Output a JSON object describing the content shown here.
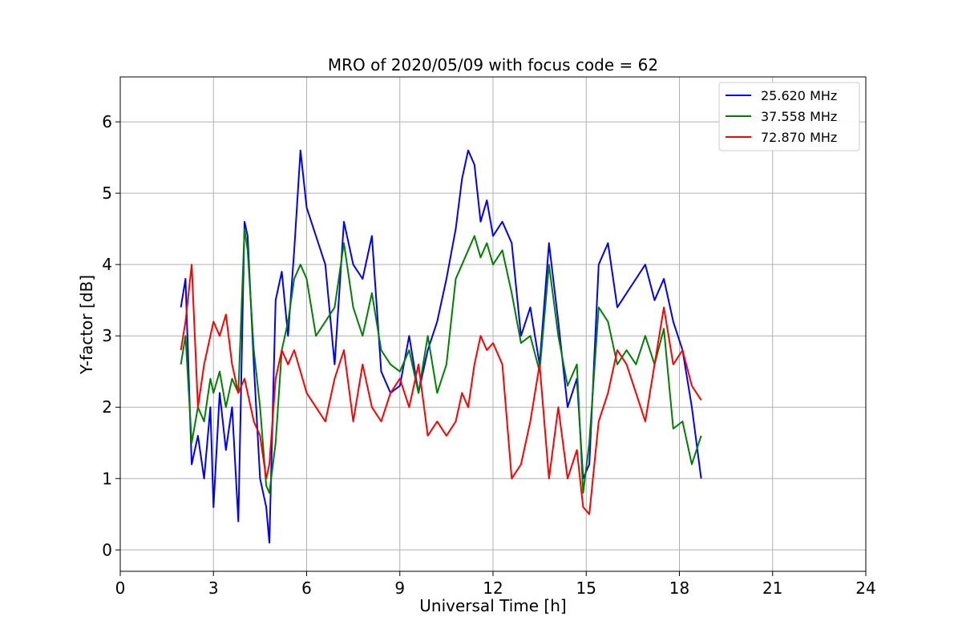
{
  "chart_data": {
    "type": "line",
    "title": "MRO of 2020/05/09 with focus code = 62",
    "xlabel": "Universal Time [h]",
    "ylabel": "Y-factor [dB]",
    "xlim": [
      0,
      24
    ],
    "ylim": [
      -0.3,
      6.63
    ],
    "xticks": [
      0,
      3,
      6,
      9,
      12,
      15,
      18,
      21,
      24
    ],
    "yticks": [
      0,
      1,
      2,
      3,
      4,
      5,
      6
    ],
    "grid": true,
    "legend_position": "top-right",
    "series": [
      {
        "name": "25.620 MHz",
        "color": "#0000ff",
        "x": [
          1.95,
          2.1,
          2.3,
          2.5,
          2.7,
          2.9,
          3.0,
          3.2,
          3.4,
          3.6,
          3.8,
          4.0,
          4.1,
          4.3,
          4.5,
          4.7,
          4.8,
          5.0,
          5.2,
          5.4,
          5.6,
          5.8,
          6.0,
          6.3,
          6.6,
          6.9,
          7.2,
          7.5,
          7.8,
          8.1,
          8.4,
          8.7,
          9.0,
          9.3,
          9.6,
          9.9,
          10.2,
          10.5,
          10.8,
          11.0,
          11.2,
          11.4,
          11.6,
          11.8,
          12.0,
          12.3,
          12.6,
          12.9,
          13.2,
          13.5,
          13.8,
          14.1,
          14.4,
          14.7,
          14.9,
          15.1,
          15.4,
          15.7,
          16.0,
          16.3,
          16.6,
          16.9,
          17.2,
          17.5,
          17.8,
          18.1,
          18.4,
          18.7
        ],
        "values": [
          3.4,
          3.8,
          1.2,
          1.6,
          1.0,
          2.0,
          0.6,
          2.2,
          1.4,
          2.0,
          0.4,
          4.6,
          4.4,
          2.6,
          1.0,
          0.6,
          0.1,
          3.5,
          3.9,
          3.0,
          4.2,
          5.6,
          4.8,
          4.4,
          4.0,
          2.6,
          4.6,
          4.0,
          3.8,
          4.4,
          2.5,
          2.2,
          2.3,
          3.0,
          2.2,
          2.8,
          3.2,
          3.8,
          4.5,
          5.2,
          5.6,
          5.4,
          4.6,
          4.9,
          4.4,
          4.6,
          4.3,
          3.0,
          3.4,
          2.6,
          4.3,
          3.2,
          2.0,
          2.4,
          1.0,
          1.2,
          4.0,
          4.3,
          3.4,
          3.6,
          3.8,
          4.0,
          3.5,
          3.8,
          3.2,
          2.8,
          2.0,
          1.0
        ],
        "line_width": 2
      },
      {
        "name": "37.558 MHz",
        "color": "#008000",
        "x": [
          1.95,
          2.1,
          2.3,
          2.5,
          2.7,
          2.9,
          3.0,
          3.2,
          3.4,
          3.6,
          3.8,
          4.0,
          4.1,
          4.3,
          4.5,
          4.7,
          4.8,
          5.0,
          5.2,
          5.4,
          5.6,
          5.8,
          6.0,
          6.3,
          6.6,
          6.9,
          7.2,
          7.5,
          7.8,
          8.1,
          8.4,
          8.7,
          9.0,
          9.3,
          9.6,
          9.9,
          10.2,
          10.5,
          10.8,
          11.0,
          11.2,
          11.4,
          11.6,
          11.8,
          12.0,
          12.3,
          12.6,
          12.9,
          13.2,
          13.5,
          13.8,
          14.1,
          14.4,
          14.7,
          14.9,
          15.1,
          15.4,
          15.7,
          16.0,
          16.3,
          16.6,
          16.9,
          17.2,
          17.5,
          17.8,
          18.1,
          18.4,
          18.7
        ],
        "values": [
          2.6,
          3.0,
          1.5,
          2.0,
          1.8,
          2.4,
          2.2,
          2.5,
          2.0,
          2.4,
          2.2,
          4.5,
          4.2,
          2.8,
          2.0,
          0.9,
          0.8,
          1.5,
          2.8,
          3.2,
          3.8,
          4.0,
          3.8,
          3.0,
          3.2,
          3.4,
          4.3,
          3.4,
          3.0,
          3.6,
          2.8,
          2.6,
          2.5,
          2.8,
          2.2,
          3.0,
          2.2,
          2.6,
          3.8,
          4.0,
          4.2,
          4.4,
          4.1,
          4.3,
          4.0,
          4.2,
          3.6,
          2.9,
          3.0,
          2.5,
          4.0,
          3.0,
          2.3,
          2.6,
          0.8,
          1.5,
          3.4,
          3.2,
          2.6,
          2.8,
          2.6,
          3.0,
          2.6,
          3.1,
          1.7,
          1.8,
          1.2,
          1.6
        ],
        "line_width": 2
      },
      {
        "name": "72.870 MHz",
        "color": "#ff0000",
        "x": [
          1.95,
          2.1,
          2.3,
          2.5,
          2.7,
          2.9,
          3.0,
          3.2,
          3.4,
          3.6,
          3.8,
          4.0,
          4.1,
          4.3,
          4.5,
          4.7,
          4.8,
          5.0,
          5.2,
          5.4,
          5.6,
          5.8,
          6.0,
          6.3,
          6.6,
          6.9,
          7.2,
          7.5,
          7.8,
          8.1,
          8.4,
          8.7,
          9.0,
          9.3,
          9.6,
          9.9,
          10.2,
          10.5,
          10.8,
          11.0,
          11.2,
          11.4,
          11.6,
          11.8,
          12.0,
          12.3,
          12.6,
          12.9,
          13.2,
          13.5,
          13.8,
          14.1,
          14.4,
          14.7,
          14.9,
          15.1,
          15.4,
          15.7,
          16.0,
          16.3,
          16.6,
          16.9,
          17.2,
          17.5,
          17.8,
          18.1,
          18.4,
          18.7
        ],
        "values": [
          2.8,
          3.2,
          4.0,
          2.0,
          2.6,
          3.0,
          3.2,
          3.0,
          3.3,
          2.6,
          2.2,
          2.4,
          2.2,
          1.8,
          1.6,
          1.0,
          1.2,
          2.4,
          2.8,
          2.6,
          2.8,
          2.5,
          2.2,
          2.0,
          1.8,
          2.4,
          2.8,
          1.8,
          2.6,
          2.0,
          1.8,
          2.2,
          2.4,
          2.0,
          2.6,
          1.6,
          1.8,
          1.6,
          1.8,
          2.2,
          2.0,
          2.6,
          3.0,
          2.8,
          2.9,
          2.6,
          1.0,
          1.2,
          1.8,
          2.6,
          1.0,
          2.0,
          1.0,
          1.4,
          0.6,
          0.5,
          1.8,
          2.2,
          2.8,
          2.6,
          2.2,
          1.8,
          2.6,
          3.4,
          2.6,
          2.8,
          2.3,
          2.1
        ],
        "line_width": 2
      }
    ]
  }
}
